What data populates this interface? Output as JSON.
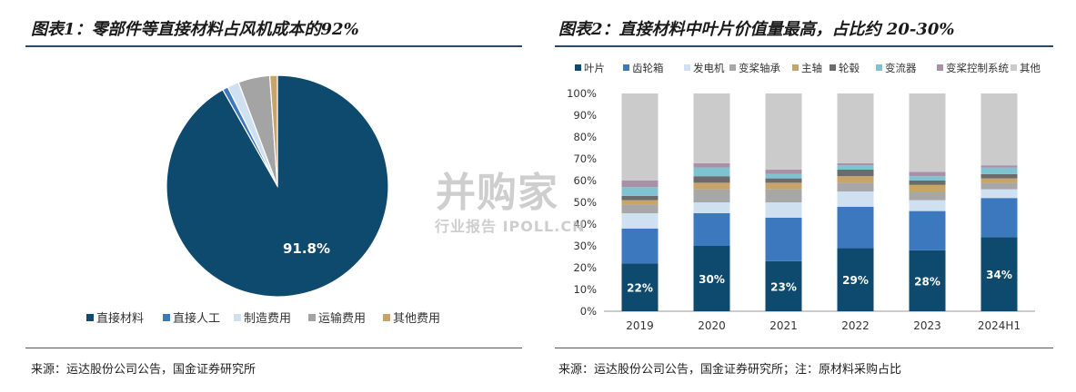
{
  "left": {
    "title": "图表1：零部件等直接材料占风机成本的92%",
    "source": "来源：运达股份公司公告，国金证券研究所"
  },
  "right": {
    "title": "图表2：直接材料中叶片价值量最高，占比约 20-30%",
    "source": "来源：运达股份公司公告，国金证券研究所；注：原材料采购占比"
  },
  "watermark": {
    "main": "\u0007并购家",
    "sub": "行业报告 IPOLL.CN"
  },
  "colors": {
    "pie": [
      "#0e4a6e",
      "#3c78bd",
      "#cfe0f1",
      "#a4a4a4",
      "#c9a46a"
    ],
    "bar": [
      "#0e4a6e",
      "#3c78bd",
      "#cfe0f1",
      "#a7a7a7",
      "#c9a46a",
      "#6b6b6b",
      "#7fc3d1",
      "#a890a6",
      "#cbcbcb"
    ]
  },
  "chart_data": [
    {
      "type": "pie",
      "categories": [
        "直接材料",
        "直接人工",
        "制造费用",
        "运输费用",
        "其他费用"
      ],
      "values": [
        91.8,
        0.8,
        1.7,
        4.6,
        1.1
      ],
      "data_labels": [
        "91.8%"
      ],
      "legend_position": "bottom"
    },
    {
      "type": "bar",
      "stacked": "percent",
      "categories": [
        "2019",
        "2020",
        "2021",
        "2022",
        "2023",
        "2024H1"
      ],
      "series": [
        {
          "name": "叶片",
          "values": [
            22,
            30,
            23,
            29,
            28,
            34
          ]
        },
        {
          "name": "齿轮箱",
          "values": [
            16,
            15,
            20,
            19,
            18,
            18
          ]
        },
        {
          "name": "发电机",
          "values": [
            7,
            5,
            7,
            7,
            5,
            4
          ]
        },
        {
          "name": "变桨轴承",
          "values": [
            4,
            6,
            6,
            4,
            4,
            3
          ]
        },
        {
          "name": "主轴",
          "values": [
            2,
            3,
            3,
            3,
            3,
            2
          ]
        },
        {
          "name": "轮毂",
          "values": [
            2,
            3,
            2,
            3,
            2,
            2
          ]
        },
        {
          "name": "变流器",
          "values": [
            4,
            4,
            2,
            2,
            2,
            3
          ]
        },
        {
          "name": "变桨控制系统",
          "values": [
            3,
            2,
            2,
            1,
            2,
            1
          ]
        },
        {
          "name": "其他",
          "values": [
            40,
            32,
            35,
            32,
            36,
            33
          ]
        }
      ],
      "data_labels": [
        "22%",
        "30%",
        "23%",
        "29%",
        "28%",
        "34%"
      ],
      "yticks": [
        "0%",
        "10%",
        "20%",
        "30%",
        "40%",
        "50%",
        "60%",
        "70%",
        "80%",
        "90%",
        "100%"
      ],
      "ylim": [
        0,
        100
      ],
      "grid": false,
      "legend_position": "top"
    }
  ]
}
